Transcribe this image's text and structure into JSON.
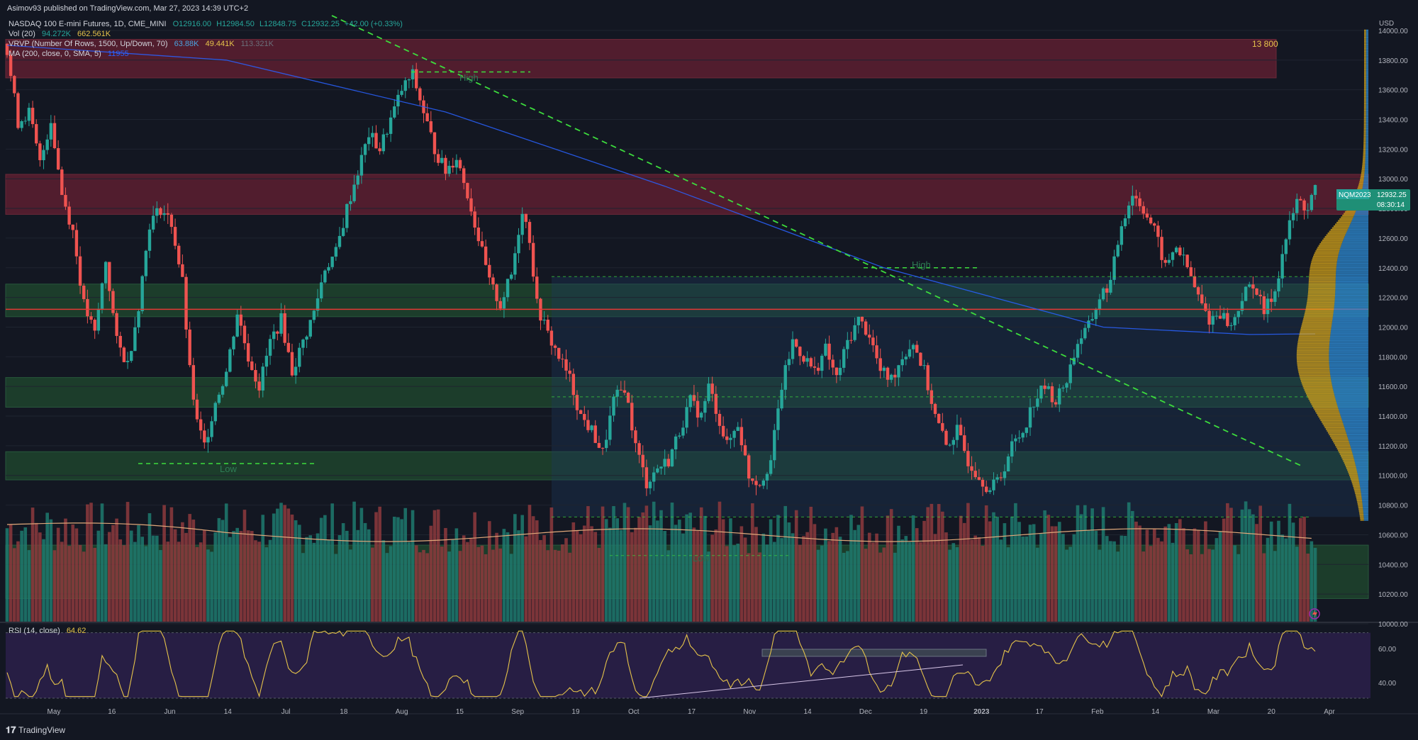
{
  "header": {
    "publisher": "Asimov93 published on TradingView.com, Mar 27, 2023 14:39 UTC+2",
    "symbol_line": "NASDAQ 100 E-mini Futures, 1D, CME_MINI",
    "ohlc": {
      "o": "O12916.00",
      "h": "H12984.50",
      "l": "L12848.75",
      "c": "C12932.25",
      "chg": "+42.00 (+0.33%)"
    },
    "vol_label": "Vol (20)",
    "vol_values": [
      "94.272K",
      "662.561K"
    ],
    "vrvp_label": "VRVP (Number Of Rows, 1500, Up/Down, 70)",
    "vrvp_values": [
      "63.88K",
      "49.441K",
      "113.321K"
    ],
    "ma_label": "MA (200, close, 0, SMA, 5)",
    "ma_value": "11955"
  },
  "footer": {
    "brand": "TradingView"
  },
  "price_tag": {
    "symbol": "NQM2023",
    "price": "12932.25",
    "countdown": "08:30:14"
  },
  "annotations": {
    "high1": "High",
    "high2": "High",
    "low1": "Low",
    "low2": "Low",
    "level_13800": "13 800",
    "currency": "USD"
  },
  "rsi": {
    "label": "RSI (14, close)",
    "value": "64.62",
    "ticks": [
      "60.00",
      "40.00"
    ]
  },
  "colors": {
    "bg": "#131722",
    "up": "#26a69a",
    "down": "#ef5350",
    "red_zone": "#5c1f31",
    "green_zone": "#1f4a2f",
    "trend": "#3ddc3d",
    "ma": "#2962ff",
    "rsi_line": "#e5c34a",
    "rsi_bg": "#2a1f48",
    "vrvp_up": "#2f8fd8",
    "vrvp_down": "#d7a619"
  },
  "chart_data": {
    "type": "candlestick",
    "timeframe": "1D",
    "ylim": [
      10000,
      14100
    ],
    "price_ticks": [
      "14000.00",
      "13800.00",
      "13600.00",
      "13400.00",
      "13200.00",
      "13000.00",
      "12800.00",
      "12600.00",
      "12400.00",
      "12200.00",
      "12000.00",
      "11800.00",
      "11600.00",
      "11400.00",
      "11200.00",
      "11000.00",
      "10800.00",
      "10600.00",
      "10400.00",
      "10200.00",
      "10000.00"
    ],
    "x_labels": [
      "May",
      "16",
      "Jun",
      "14",
      "Jul",
      "18",
      "Aug",
      "15",
      "Sep",
      "19",
      "Oct",
      "17",
      "Nov",
      "14",
      "Dec",
      "19",
      "2023",
      "17",
      "Feb",
      "14",
      "Mar",
      "20",
      "Apr"
    ],
    "close_path": [
      [
        0,
        13850
      ],
      [
        3,
        13380
      ],
      [
        6,
        13450
      ],
      [
        9,
        13100
      ],
      [
        12,
        13400
      ],
      [
        15,
        12900
      ],
      [
        18,
        12650
      ],
      [
        21,
        12150
      ],
      [
        24,
        11950
      ],
      [
        27,
        12450
      ],
      [
        30,
        11900
      ],
      [
        33,
        11750
      ],
      [
        36,
        12150
      ],
      [
        39,
        12700
      ],
      [
        42,
        12800
      ],
      [
        45,
        12700
      ],
      [
        48,
        12300
      ],
      [
        50,
        11700
      ],
      [
        52,
        11350
      ],
      [
        54,
        11200
      ],
      [
        57,
        11500
      ],
      [
        60,
        11700
      ],
      [
        63,
        12100
      ],
      [
        66,
        11800
      ],
      [
        69,
        11600
      ],
      [
        72,
        11900
      ],
      [
        75,
        12050
      ],
      [
        78,
        11700
      ],
      [
        81,
        11900
      ],
      [
        84,
        12100
      ],
      [
        87,
        12400
      ],
      [
        90,
        12500
      ],
      [
        93,
        12800
      ],
      [
        96,
        13050
      ],
      [
        99,
        13300
      ],
      [
        102,
        13200
      ],
      [
        105,
        13400
      ],
      [
        108,
        13600
      ],
      [
        111,
        13700
      ],
      [
        114,
        13450
      ],
      [
        117,
        13200
      ],
      [
        120,
        13050
      ],
      [
        123,
        13150
      ],
      [
        126,
        12900
      ],
      [
        129,
        12600
      ],
      [
        132,
        12300
      ],
      [
        135,
        12150
      ],
      [
        138,
        12350
      ],
      [
        141,
        12800
      ],
      [
        143,
        12600
      ],
      [
        145,
        12150
      ],
      [
        148,
        11950
      ],
      [
        151,
        11800
      ],
      [
        154,
        11650
      ],
      [
        157,
        11400
      ],
      [
        160,
        11300
      ],
      [
        163,
        11150
      ],
      [
        166,
        11500
      ],
      [
        169,
        11600
      ],
      [
        172,
        11200
      ],
      [
        175,
        10950
      ],
      [
        178,
        11050
      ],
      [
        181,
        11100
      ],
      [
        184,
        11300
      ],
      [
        187,
        11500
      ],
      [
        190,
        11400
      ],
      [
        192,
        11600
      ],
      [
        194,
        11450
      ],
      [
        197,
        11200
      ],
      [
        200,
        11350
      ],
      [
        203,
        11000
      ],
      [
        206,
        10950
      ],
      [
        209,
        11100
      ],
      [
        212,
        11600
      ],
      [
        215,
        11900
      ],
      [
        218,
        11800
      ],
      [
        221,
        11700
      ],
      [
        224,
        11850
      ],
      [
        227,
        11650
      ],
      [
        230,
        11900
      ],
      [
        233,
        12050
      ],
      [
        236,
        11950
      ],
      [
        239,
        11700
      ],
      [
        242,
        11650
      ],
      [
        245,
        11800
      ],
      [
        248,
        11900
      ],
      [
        251,
        11700
      ],
      [
        254,
        11400
      ],
      [
        257,
        11200
      ],
      [
        260,
        11300
      ],
      [
        263,
        11100
      ],
      [
        266,
        11000
      ],
      [
        269,
        10900
      ],
      [
        272,
        11000
      ],
      [
        275,
        11200
      ],
      [
        278,
        11300
      ],
      [
        281,
        11500
      ],
      [
        284,
        11600
      ],
      [
        287,
        11500
      ],
      [
        290,
        11650
      ],
      [
        293,
        11900
      ],
      [
        296,
        12000
      ],
      [
        299,
        12200
      ],
      [
        302,
        12300
      ],
      [
        305,
        12700
      ],
      [
        308,
        12900
      ],
      [
        311,
        12800
      ],
      [
        314,
        12650
      ],
      [
        317,
        12400
      ],
      [
        320,
        12550
      ],
      [
        323,
        12400
      ],
      [
        326,
        12200
      ],
      [
        329,
        12050
      ],
      [
        332,
        12100
      ],
      [
        335,
        12000
      ],
      [
        338,
        12200
      ],
      [
        341,
        12300
      ],
      [
        344,
        12100
      ],
      [
        347,
        12250
      ],
      [
        350,
        12600
      ],
      [
        353,
        12850
      ],
      [
        356,
        12800
      ],
      [
        358,
        12932
      ]
    ],
    "series": [
      {
        "name": "MA (200, close, 0, SMA, 5)",
        "values": [
          [
            0,
            13900
          ],
          [
            60,
            13800
          ],
          [
            120,
            13450
          ],
          [
            180,
            12950
          ],
          [
            240,
            12400
          ],
          [
            300,
            12000
          ],
          [
            340,
            11950
          ],
          [
            358,
            11955
          ]
        ]
      }
    ],
    "zones": [
      {
        "kind": "supply",
        "from": 13680,
        "to": 13940
      },
      {
        "kind": "supply",
        "from": 12760,
        "to": 13030
      },
      {
        "kind": "demand",
        "from": 12070,
        "to": 12290
      },
      {
        "kind": "demand",
        "from": 11460,
        "to": 11660
      },
      {
        "kind": "demand",
        "from": 10970,
        "to": 11160
      },
      {
        "kind": "demand",
        "from": 10170,
        "to": 10530
      }
    ],
    "levels": [
      {
        "kind": "horizontal",
        "value": 12120
      },
      {
        "kind": "dashed",
        "value": 12340
      },
      {
        "kind": "dashed",
        "value": 11530
      },
      {
        "kind": "dashed",
        "value": 10720
      },
      {
        "kind": "dashed",
        "value": 10460
      }
    ],
    "rsi": {
      "ylim": [
        30,
        72
      ],
      "last": 64.62
    }
  }
}
